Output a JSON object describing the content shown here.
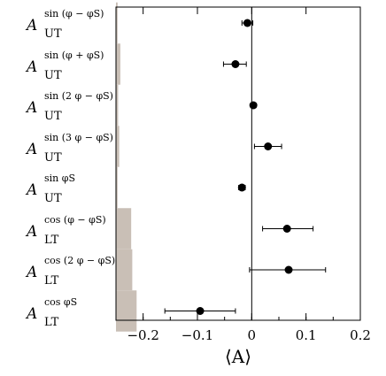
{
  "chart_data": {
    "type": "scatter",
    "xlabel": "⟨A⟩",
    "xlim": [
      -0.25,
      0.2
    ],
    "xticks": [
      -0.2,
      -0.1,
      0,
      0.1,
      0.2
    ],
    "xtick_labels": [
      "−0.2",
      "−0.1",
      "0",
      "0.1",
      "0.2"
    ],
    "zero_line": true,
    "grid": false,
    "colors": {
      "points": "#000000",
      "band": "#c9bfb6",
      "axis": "#000000"
    },
    "rows": [
      {
        "label_main": "A",
        "label_sub": "UT",
        "label_sup": "sin (φ − φS)",
        "value": -0.008,
        "err_lo": 0.01,
        "err_hi": 0.01,
        "band": 0.003
      },
      {
        "label_main": "A",
        "label_sub": "UT",
        "label_sup": "sin (φ + φS)",
        "value": -0.03,
        "err_lo": 0.022,
        "err_hi": 0.02,
        "band": 0.008
      },
      {
        "label_main": "A",
        "label_sub": "UT",
        "label_sup": "sin (2 φ − φS)",
        "value": 0.003,
        "err_lo": 0.005,
        "err_hi": 0.005,
        "band": 0.004
      },
      {
        "label_main": "A",
        "label_sub": "UT",
        "label_sup": "sin (3 φ − φS)",
        "value": 0.03,
        "err_lo": 0.025,
        "err_hi": 0.025,
        "band": 0.006
      },
      {
        "label_main": "A",
        "label_sub": "UT",
        "label_sup": "sin φS",
        "value": -0.018,
        "err_lo": 0.006,
        "err_hi": 0.006,
        "band": 0.003
      },
      {
        "label_main": "A",
        "label_sub": "LT",
        "label_sup": "cos (φ − φS)",
        "value": 0.065,
        "err_lo": 0.045,
        "err_hi": 0.048,
        "band": 0.028
      },
      {
        "label_main": "A",
        "label_sub": "LT",
        "label_sup": "cos (2 φ − φS)",
        "value": 0.068,
        "err_lo": 0.072,
        "err_hi": 0.068,
        "band": 0.03
      },
      {
        "label_main": "A",
        "label_sub": "LT",
        "label_sup": "cos φS",
        "value": -0.095,
        "err_lo": 0.065,
        "err_hi": 0.065,
        "band": 0.038
      }
    ]
  }
}
